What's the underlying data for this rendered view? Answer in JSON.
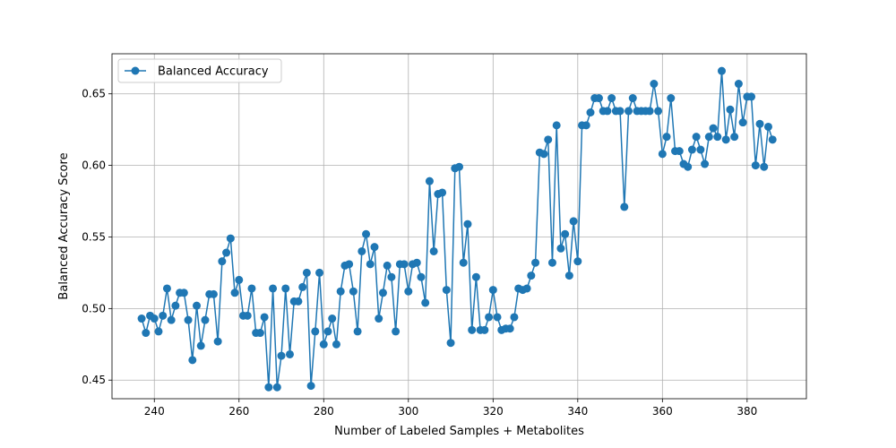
{
  "chart_data": {
    "type": "line",
    "title": "",
    "xlabel": "Number of Labeled Samples + Metabolites",
    "ylabel": "Balanced Accuracy Score",
    "xlim": [
      230,
      394
    ],
    "ylim": [
      0.437,
      0.678
    ],
    "xticks": [
      240,
      260,
      280,
      300,
      320,
      340,
      360,
      380
    ],
    "yticks": [
      0.45,
      0.5,
      0.55,
      0.6,
      0.65
    ],
    "grid": true,
    "legend_position": "top-left",
    "series": [
      {
        "name": "Balanced Accuracy",
        "color": "#1f77b4",
        "marker": "circle",
        "x": [
          237,
          238,
          239,
          240,
          241,
          242,
          243,
          244,
          245,
          246,
          247,
          248,
          249,
          250,
          251,
          252,
          253,
          254,
          255,
          256,
          257,
          258,
          259,
          260,
          261,
          262,
          263,
          264,
          265,
          266,
          267,
          268,
          269,
          270,
          271,
          272,
          273,
          274,
          275,
          276,
          277,
          278,
          279,
          280,
          281,
          282,
          283,
          284,
          285,
          286,
          287,
          288,
          289,
          290,
          291,
          292,
          293,
          294,
          295,
          296,
          297,
          298,
          299,
          300,
          301,
          302,
          303,
          304,
          305,
          306,
          307,
          308,
          309,
          310,
          311,
          312,
          313,
          314,
          315,
          316,
          317,
          318,
          319,
          320,
          321,
          322,
          323,
          324,
          325,
          326,
          327,
          328,
          329,
          330,
          331,
          332,
          333,
          334,
          335,
          336,
          337,
          338,
          339,
          340,
          341,
          342,
          343,
          344,
          345,
          346,
          347,
          348,
          349,
          350,
          351,
          352,
          353,
          354,
          355,
          356,
          357,
          358,
          359,
          360,
          361,
          362,
          363,
          364,
          365,
          366,
          367,
          368,
          369,
          370,
          371,
          372,
          373,
          374,
          375,
          376,
          377,
          378,
          379,
          380,
          381,
          382,
          383,
          384,
          385,
          386
        ],
        "y": [
          0.493,
          0.483,
          0.495,
          0.493,
          0.484,
          0.495,
          0.514,
          0.492,
          0.502,
          0.511,
          0.511,
          0.492,
          0.464,
          0.502,
          0.474,
          0.492,
          0.51,
          0.51,
          0.477,
          0.533,
          0.539,
          0.549,
          0.511,
          0.52,
          0.495,
          0.495,
          0.514,
          0.483,
          0.483,
          0.494,
          0.445,
          0.514,
          0.445,
          0.467,
          0.514,
          0.468,
          0.505,
          0.505,
          0.515,
          0.525,
          0.446,
          0.484,
          0.525,
          0.475,
          0.484,
          0.493,
          0.475,
          0.512,
          0.53,
          0.531,
          0.512,
          0.484,
          0.54,
          0.552,
          0.531,
          0.543,
          0.493,
          0.511,
          0.53,
          0.522,
          0.484,
          0.531,
          0.531,
          0.512,
          0.531,
          0.532,
          0.522,
          0.504,
          0.589,
          0.54,
          0.58,
          0.581,
          0.513,
          0.476,
          0.598,
          0.599,
          0.532,
          0.559,
          0.485,
          0.522,
          0.485,
          0.485,
          0.494,
          0.513,
          0.494,
          0.485,
          0.486,
          0.486,
          0.494,
          0.514,
          0.513,
          0.514,
          0.523,
          0.532,
          0.609,
          0.608,
          0.618,
          0.532,
          0.628,
          0.542,
          0.552,
          0.523,
          0.561,
          0.533,
          0.628,
          0.628,
          0.637,
          0.647,
          0.647,
          0.638,
          0.638,
          0.647,
          0.638,
          0.638,
          0.571,
          0.638,
          0.647,
          0.638,
          0.638,
          0.638,
          0.638,
          0.657,
          0.638,
          0.608,
          0.62,
          0.647,
          0.61,
          0.61,
          0.601,
          0.599,
          0.611,
          0.62,
          0.611,
          0.601,
          0.62,
          0.626,
          0.62,
          0.666,
          0.618,
          0.639,
          0.62,
          0.657,
          0.63,
          0.648,
          0.648,
          0.6,
          0.629,
          0.599,
          0.627,
          0.618
        ]
      }
    ]
  }
}
